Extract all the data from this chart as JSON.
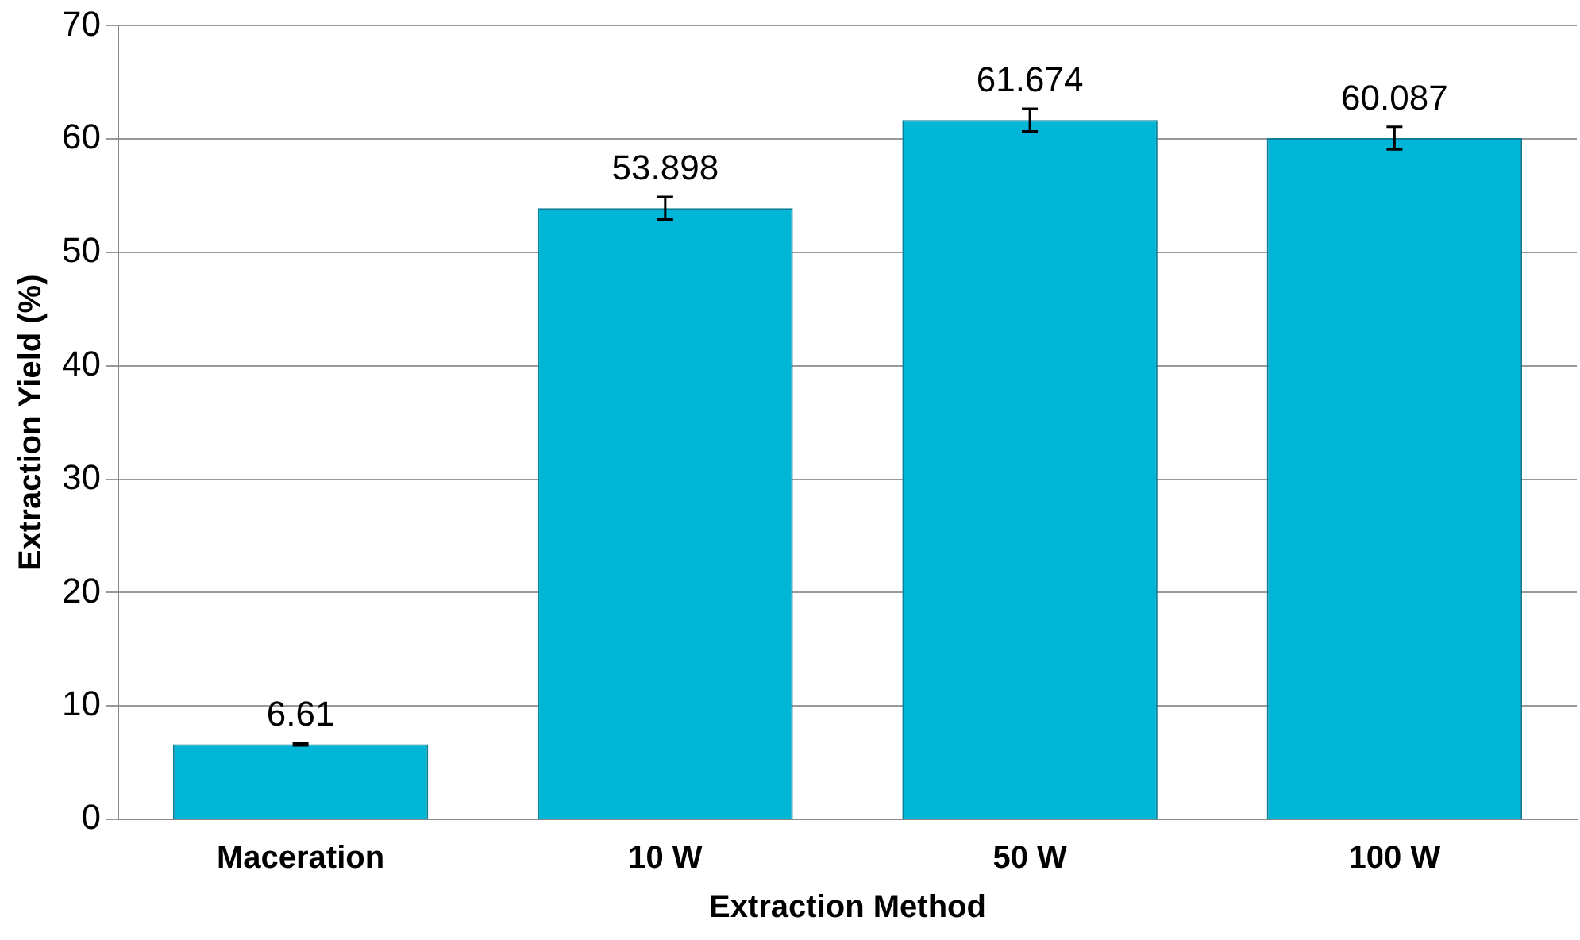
{
  "chart_data": {
    "type": "bar",
    "xlabel": "Extraction Method",
    "ylabel": "Extraction Yield (%)",
    "categories": [
      "Maceration",
      "10 W",
      "50 W",
      "100 W"
    ],
    "values": [
      6.61,
      53.898,
      61.674,
      60.087
    ],
    "errors": [
      0.1,
      1,
      1,
      1
    ],
    "color": "#00b5d6",
    "ylim": [
      0,
      70
    ],
    "yticks": [
      0,
      10,
      20,
      30,
      40,
      50,
      60,
      70
    ],
    "grid": "y",
    "data_labels": true
  }
}
